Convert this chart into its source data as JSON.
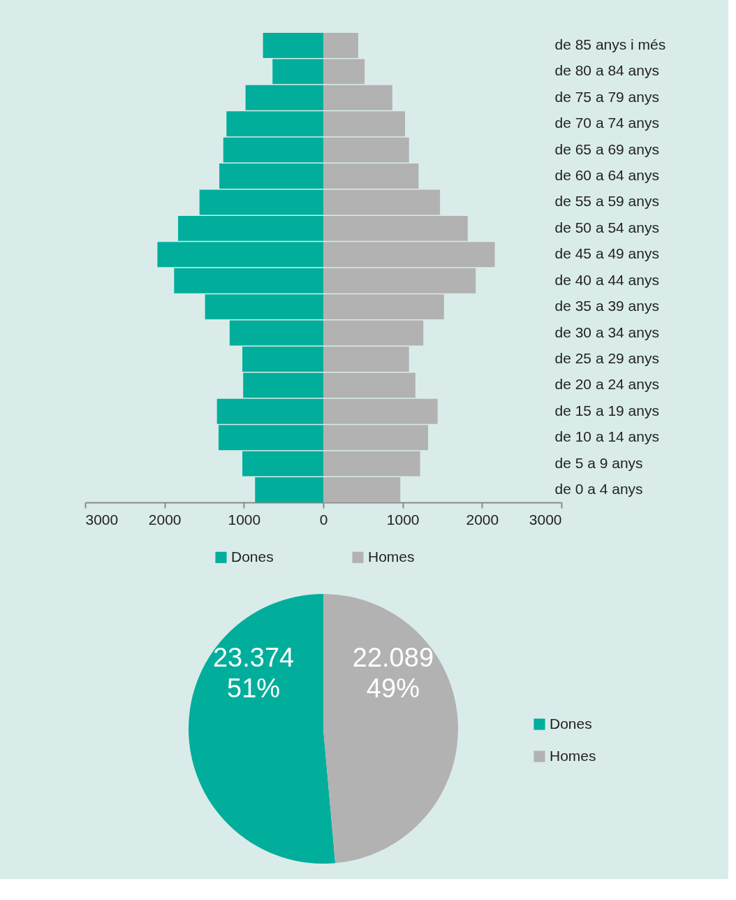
{
  "chart_data": [
    {
      "type": "bar",
      "orientation": "horizontal",
      "categories": [
        "de 85 anys i més",
        "de 80 a 84 anys",
        "de 75 a 79 anys",
        "de 70 a 74 anys",
        "de 65 a 69 anys",
        "de 60 a 64 anys",
        "de 55 a 59 anys",
        "de 50 a 54 anys",
        "de 45 a 49 anys",
        "de 40 a 44 anys",
        "de 35 a 39 anys",
        "de 30 a 34 anys",
        "de 25 a 29 anys",
        "de 20 a 24 anys",
        "de 15 a 19 anys",
        "de 10 a 14 anys",
        "de 5 a 9 anys",
        "de 0 a 4 anys"
      ],
      "series": [
        {
          "name": "Dones",
          "color": "#00ae9b",
          "values": [
            -760,
            -640,
            -980,
            -1220,
            -1260,
            -1310,
            -1560,
            -1830,
            -2090,
            -1880,
            -1490,
            -1180,
            -1020,
            -1010,
            -1340,
            -1320,
            -1020,
            -860
          ]
        },
        {
          "name": "Homes",
          "color": "#b2b2b2",
          "values": [
            440,
            520,
            870,
            1030,
            1080,
            1200,
            1470,
            1820,
            2160,
            1920,
            1520,
            1260,
            1080,
            1160,
            1440,
            1320,
            1220,
            970
          ]
        }
      ],
      "xlim": [
        -3000,
        3000
      ],
      "xticks": [
        {
          "value": -3000,
          "label": "3000"
        },
        {
          "value": -2000,
          "label": "2000"
        },
        {
          "value": -1000,
          "label": "1000"
        },
        0,
        1000,
        2000,
        3000
      ],
      "stacked": true,
      "grid": false,
      "legend": "bottom"
    },
    {
      "type": "pie",
      "categories": [
        "Dones",
        "Homes"
      ],
      "values": [
        23374,
        22089
      ],
      "colors": [
        "#00ae9b",
        "#b2b2b2"
      ],
      "value_labels": [
        "23.374\n51%",
        "22.089\n49%"
      ],
      "legend": "right"
    }
  ]
}
